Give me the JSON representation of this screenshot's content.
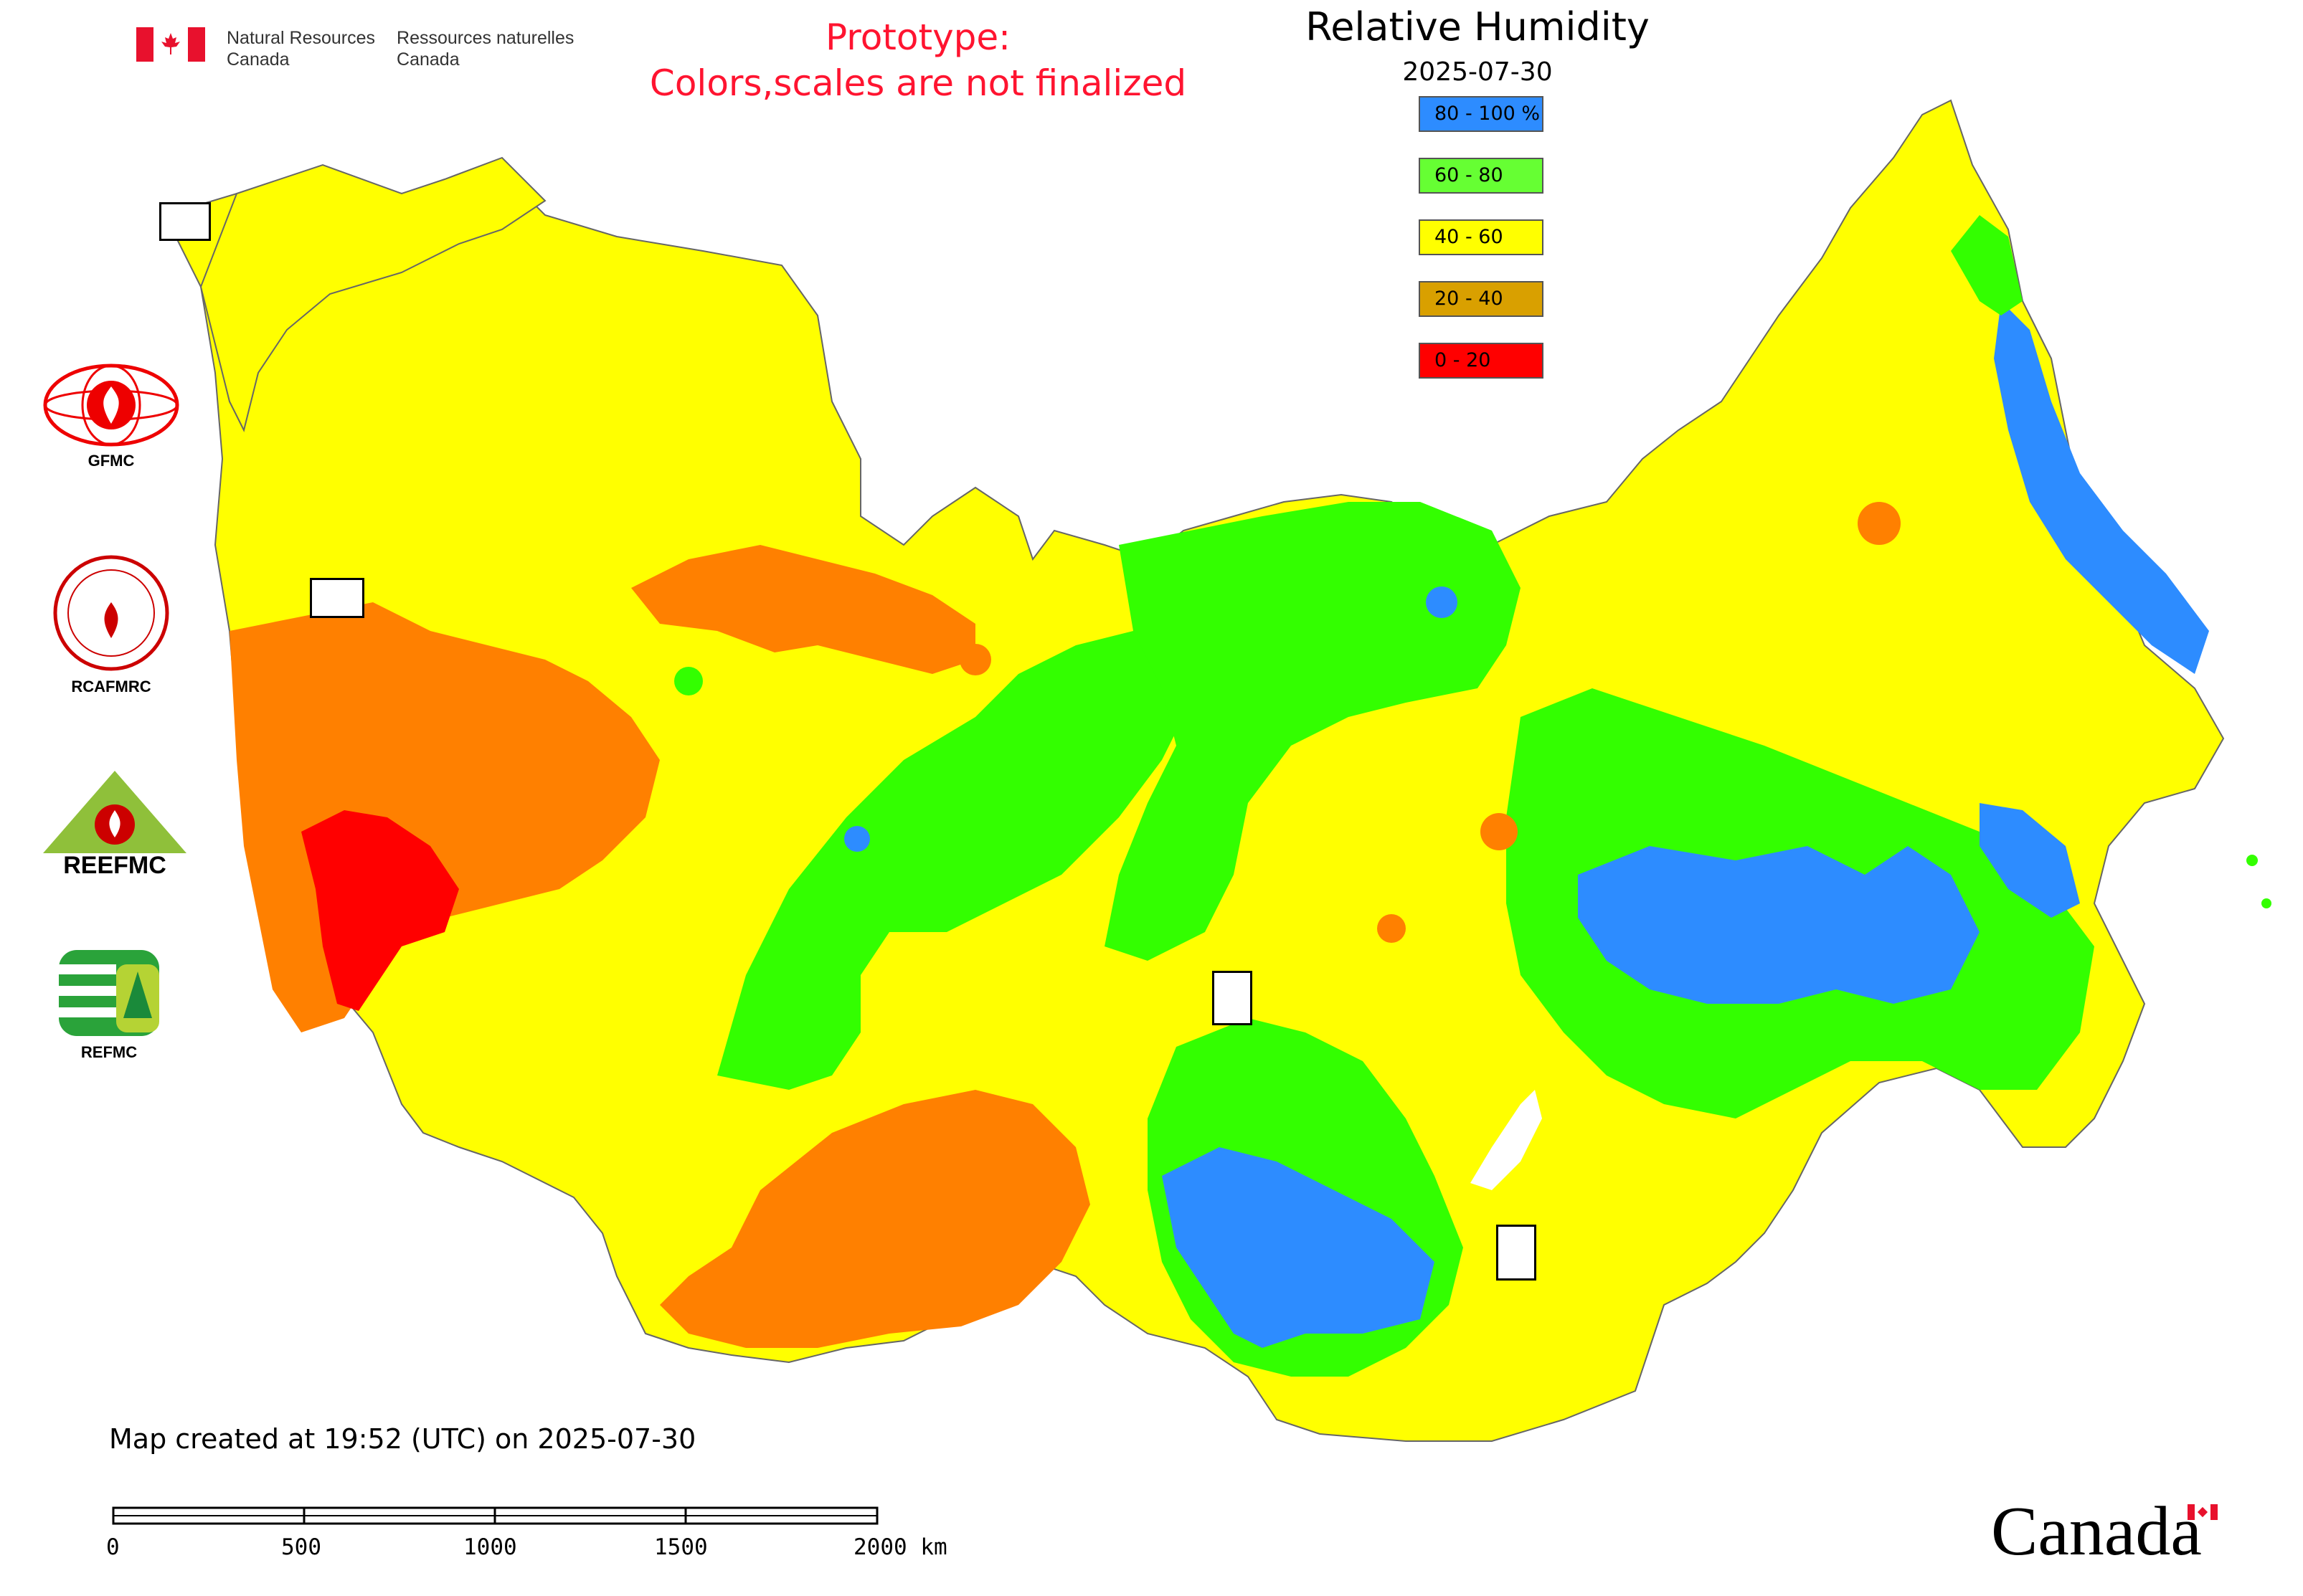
{
  "header": {
    "nrcan_en_1": "Natural Resources",
    "nrcan_en_2": "Canada",
    "nrcan_fr_1": "Ressources naturelles",
    "nrcan_fr_2": "Canada",
    "prototype_line1": "Prototype:",
    "prototype_line2": "Colors,scales are not finalized",
    "title": "Relative Humidity",
    "date": "2025-07-30"
  },
  "legend": {
    "items": [
      {
        "label": "80 - 100 %",
        "color": "#2d8cff"
      },
      {
        "label": "60 - 80",
        "color": "#66ff33"
      },
      {
        "label": "40 - 60",
        "color": "#ffff00"
      },
      {
        "label": "20 - 40",
        "color": "#d9a000"
      },
      {
        "label": "0 - 20",
        "color": "#ff0000"
      }
    ]
  },
  "map_colors": {
    "h80": "#2d8cff",
    "h60": "#33ff00",
    "h40": "#ffff00",
    "h20": "#ff8000",
    "h0": "#ff0000"
  },
  "logos": {
    "gfmc": "GFMC",
    "rcafmrc": "RCAFMRC",
    "reefmc_text": "REEFMC",
    "refmc": "REFMC"
  },
  "footer": {
    "created": "Map created at 19:52 (UTC) on 2025-07-30",
    "wordmark": "Canada"
  },
  "scale": {
    "labels": [
      "0",
      "500",
      "1000",
      "1500",
      "2000 km"
    ]
  }
}
